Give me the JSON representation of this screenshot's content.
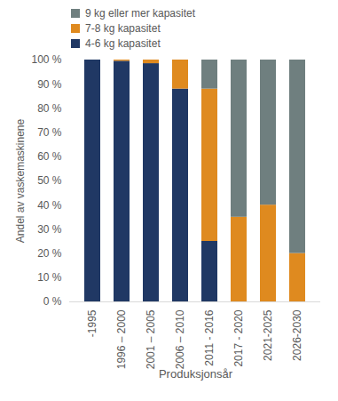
{
  "chart_data": {
    "type": "bar",
    "stacked": true,
    "y_label": "Andel av vaskemaskinene",
    "x_label": "Produksjonsår",
    "categories": [
      "-1995",
      "1996 – 2000",
      "2001 – 2005",
      "2006 – 2010",
      "2011 - 2016",
      "2017 - 2020",
      "2021-2025",
      "2026-2030"
    ],
    "series": [
      {
        "name": "4-6 kg kapasitet",
        "color": "#203864",
        "values": [
          100,
          99.5,
          98.5,
          88,
          25,
          0,
          0,
          0
        ]
      },
      {
        "name": "7-8 kg kapasitet",
        "color": "#df8a1f",
        "values": [
          0,
          0.5,
          1.5,
          12,
          63,
          35,
          40,
          20
        ]
      },
      {
        "name": "9 kg eller mer kapasitet",
        "color": "#6f7f7f",
        "values": [
          0,
          0,
          0,
          0,
          12,
          65,
          60,
          80
        ]
      }
    ],
    "ylim": [
      0,
      100
    ],
    "yticks": [
      {
        "value": 0,
        "label": "0 %"
      },
      {
        "value": 10,
        "label": "10 %"
      },
      {
        "value": 20,
        "label": "20 %"
      },
      {
        "value": 30,
        "label": "30 %"
      },
      {
        "value": 40,
        "label": "40 %"
      },
      {
        "value": 50,
        "label": "50 %"
      },
      {
        "value": 60,
        "label": "60 %"
      },
      {
        "value": 70,
        "label": "70 %"
      },
      {
        "value": 80,
        "label": "80 %"
      },
      {
        "value": 90,
        "label": "90 %"
      },
      {
        "value": 100,
        "label": "100 %"
      }
    ],
    "grid": false
  }
}
